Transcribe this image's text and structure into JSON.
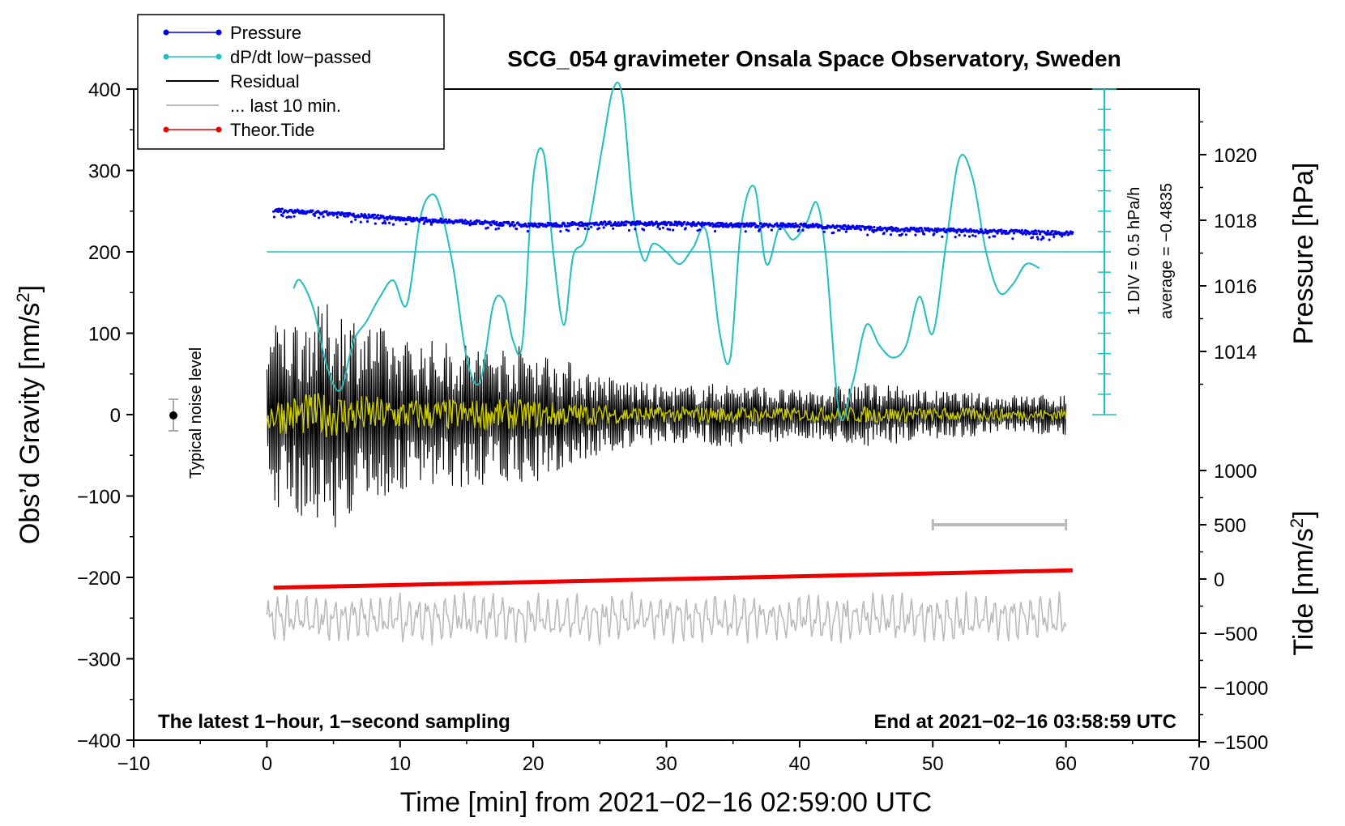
{
  "chart_data": {
    "type": "line",
    "title": "SCG_054 gravimeter Onsala Space Observatory, Sweden",
    "xlabel": "Time [min] from 2021−02−16 02:59:00 UTC",
    "ylabel_left": "Obs’d Gravity [nm/s",
    "ylabel_left_sup": "2",
    "ylabel_left_end": "]",
    "ylabel_right_top": "Pressure [hPa]",
    "ylabel_right_bottom": "Tide [nm/s",
    "ylabel_right_bottom_sup": "2",
    "ylabel_right_bottom_end": "]",
    "xlim": [
      -10,
      70
    ],
    "ylim": [
      -400,
      400
    ],
    "xticks": [
      "−10",
      "0",
      "10",
      "20",
      "30",
      "40",
      "50",
      "60",
      "70"
    ],
    "yticks_left": [
      "400",
      "300",
      "200",
      "100",
      "0",
      "−100",
      "−200",
      "−300",
      "−400"
    ],
    "pressure_ticks": [
      "1020",
      "1018",
      "1016",
      "1014"
    ],
    "tide_ticks": [
      "1000",
      "500",
      "0",
      "−500",
      "−1000",
      "−1500"
    ],
    "note_left": "The latest 1−hour, 1−second sampling",
    "note_right": "End at 2021−02−16 03:58:59 UTC",
    "noise_label": "Typical noise level",
    "div_label": "1 DIV = 0.5 hPa/h",
    "average_label": "average = −0.4835",
    "legend": [
      "Pressure",
      "dP/dt low−passed",
      "Residual",
      "... last 10 min.",
      "Theor.Tide"
    ],
    "colors": {
      "pressure": "#0000ee",
      "dpdt": "#1fbfbf",
      "residual": "#000000",
      "last10": "#bbbbbb",
      "tide": "#ee0000",
      "filtered": "#cccc00"
    },
    "series": [
      {
        "name": "Pressure",
        "unit": "hPa",
        "x": [
          0.5,
          5,
          10,
          15,
          20,
          25,
          30,
          35,
          40,
          45,
          50,
          55,
          60.5
        ],
        "values": [
          1018.3,
          1018.2,
          1018.05,
          1017.95,
          1017.85,
          1017.9,
          1017.9,
          1017.85,
          1017.85,
          1017.75,
          1017.7,
          1017.65,
          1017.6
        ]
      },
      {
        "name": "dP/dt low−passed",
        "unit": "y-units (200 = average)",
        "x": [
          2.0,
          2.5,
          3.5,
          4.5,
          5.5,
          6.5,
          7.5,
          8.5,
          9.5,
          10.5,
          11.5,
          12.3,
          13.0,
          14.0,
          15.0,
          16.0,
          17.0,
          17.8,
          18.5,
          19.2,
          20.0,
          20.8,
          21.5,
          22.3,
          23.0,
          24.0,
          25.2,
          26.0,
          26.7,
          27.5,
          28.3,
          29.0,
          30.0,
          31.0,
          32.0,
          33.0,
          34.0,
          34.8,
          35.6,
          36.6,
          37.5,
          38.5,
          39.5,
          40.5,
          41.3,
          42.0,
          43.0,
          44.0,
          45.0,
          46.0,
          47.0,
          48.0,
          49.0,
          50.0,
          51.0,
          52.0,
          53.0,
          54.0,
          55.0,
          56.0,
          57.0,
          58.0
        ],
        "values": [
          155,
          165,
          130,
          60,
          30,
          90,
          115,
          145,
          165,
          135,
          240,
          270,
          255,
          180,
          70,
          40,
          135,
          140,
          90,
          90,
          290,
          320,
          200,
          110,
          195,
          220,
          330,
          400,
          390,
          250,
          190,
          210,
          200,
          185,
          205,
          225,
          100,
          70,
          230,
          280,
          185,
          230,
          215,
          235,
          260,
          190,
          0,
          40,
          110,
          85,
          70,
          85,
          145,
          100,
          210,
          315,
          290,
          200,
          150,
          160,
          185,
          180
        ]
      },
      {
        "name": "Residual",
        "unit": "nm/s2 (envelope amplitude)",
        "x": [
          0,
          5,
          10,
          15,
          20,
          25,
          30,
          35,
          40,
          45,
          50,
          55,
          60
        ],
        "values": [
          110,
          140,
          95,
          90,
          85,
          50,
          35,
          40,
          30,
          40,
          30,
          25,
          25
        ]
      },
      {
        "name": "Theor.Tide",
        "unit": "nm/s2",
        "x": [
          0.5,
          60.5
        ],
        "values": [
          -80,
          80
        ]
      },
      {
        "name": "... last 10 min.",
        "unit": "y-units (centered at -250)",
        "x": [
          0,
          60
        ],
        "values": [
          -250,
          -250
        ]
      }
    ],
    "bar_10min": {
      "x_start": 50,
      "x_end": 60,
      "tide_value": 500
    }
  }
}
